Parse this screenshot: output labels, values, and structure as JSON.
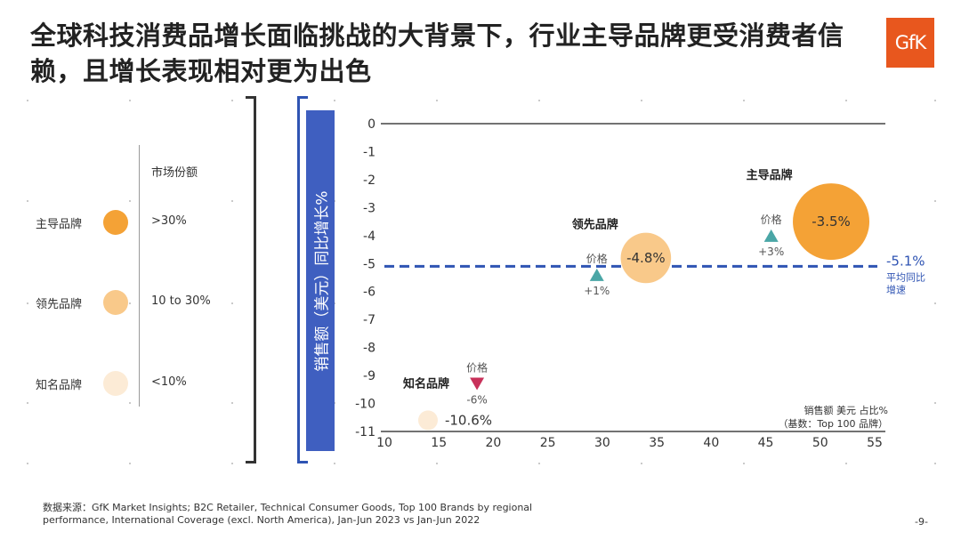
{
  "title": "全球科技消费品增长面临挑战的大背景下，行业主导品牌更受消费者信赖，且增长表现相对更为出色",
  "logo_text": "GfK",
  "legend": {
    "heading": "市场份额",
    "rows": [
      {
        "name": "主导品牌",
        "share": ">30%",
        "color": "#f4a236"
      },
      {
        "name": "领先品牌",
        "share": "10 to 30%",
        "color": "#f9c98a"
      },
      {
        "name": "知名品牌",
        "share": "<10%",
        "color": "#fcebd6"
      }
    ]
  },
  "ylabel": "销售额（美元）同比增长%",
  "chart_data": {
    "type": "scatter",
    "subtype": "bubble",
    "xlim": [
      10,
      55
    ],
    "ylim": [
      -11,
      0
    ],
    "x_ticks": [
      10,
      15,
      20,
      25,
      30,
      35,
      40,
      45,
      50,
      55
    ],
    "y_ticks": [
      0,
      -1,
      -2,
      -3,
      -4,
      -5,
      -6,
      -7,
      -8,
      -9,
      -10,
      -11
    ],
    "size_note": [
      "销售额 美元 占比%",
      "（基数：Top 100 品牌）"
    ],
    "average": {
      "value": -5.1,
      "label": "-5.1%",
      "sublabel": [
        "平均同比",
        "增速"
      ],
      "color": "#2f54b3"
    },
    "series": [
      {
        "name": "主导品牌",
        "x": 51,
        "y": -3.5,
        "label": "-3.5%",
        "size": 51,
        "color": "#f4a236",
        "price": {
          "label": "价格",
          "change": "+3%",
          "x": 45.5,
          "y": -4.0,
          "direction": "up",
          "color": "#4aa6a6"
        }
      },
      {
        "name": "领先品牌",
        "x": 34,
        "y": -4.8,
        "label": "-4.8%",
        "size": 34,
        "color": "#f9c98a",
        "price": {
          "label": "价格",
          "change": "+1%",
          "x": 29.5,
          "y": -5.4,
          "direction": "up",
          "color": "#4aa6a6"
        }
      },
      {
        "name": "知名品牌",
        "x": 14,
        "y": -10.6,
        "label": "-10.6%",
        "size": 14,
        "color": "#fcebd6",
        "price": {
          "label": "价格",
          "change": "-6%",
          "x": 18.5,
          "y": -9.3,
          "direction": "down",
          "color": "#c8315a"
        }
      }
    ]
  },
  "source": "数据来源：GfK Market Insights; B2C Retailer, Technical Consumer Goods, Top 100 Brands by regional performance, International Coverage (excl.  North America), Jan-Jun 2023 vs Jan-Jun 2022",
  "page_number": "-9-"
}
